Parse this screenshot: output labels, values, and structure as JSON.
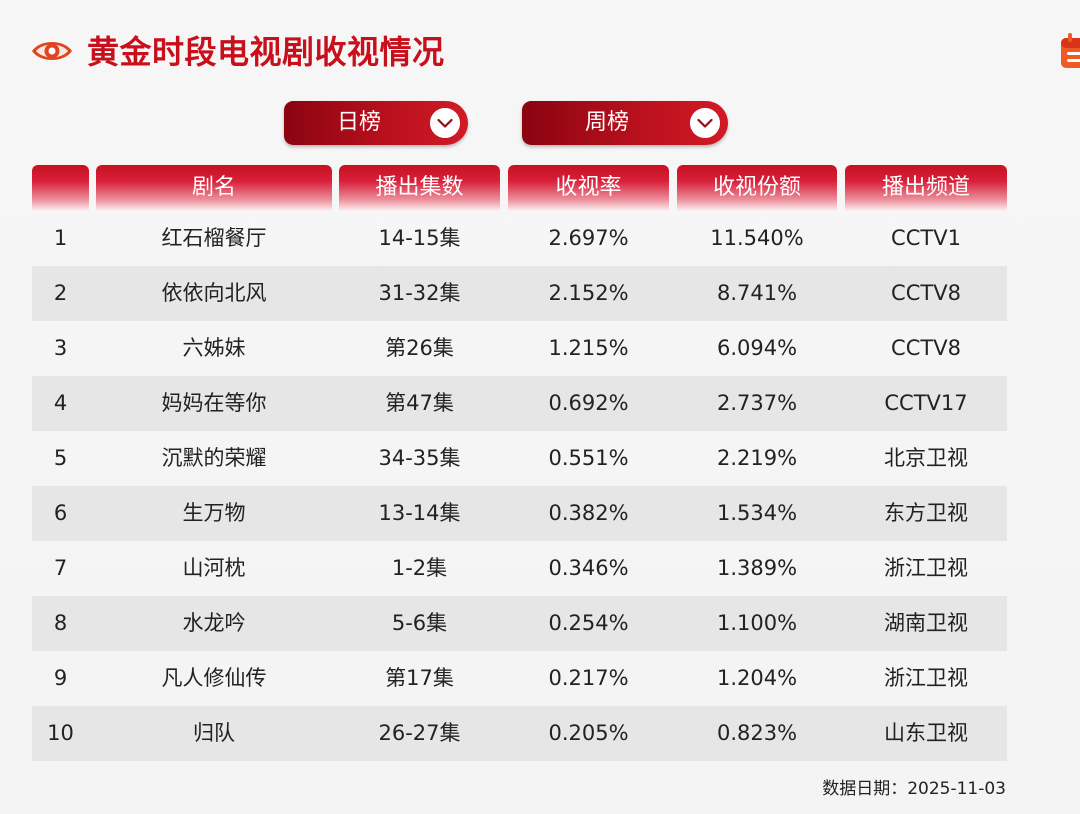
{
  "header": {
    "title": "黄金时段电视剧收视情况",
    "left_icon": "eye-icon",
    "right_icon": "calendar-icon"
  },
  "filters": {
    "day": {
      "label": "日榜",
      "icon": "chevron-down-icon"
    },
    "week": {
      "label": "周榜",
      "icon": "chevron-down-icon"
    }
  },
  "table": {
    "columns": [
      "",
      "剧名",
      "播出集数",
      "收视率",
      "收视份额",
      "播出频道"
    ],
    "rows": [
      {
        "rank": "1",
        "name": "红石榴餐厅",
        "episodes": "14-15集",
        "rating": "2.697%",
        "share": "11.540%",
        "channel": "CCTV1"
      },
      {
        "rank": "2",
        "name": "依依向北风",
        "episodes": "31-32集",
        "rating": "2.152%",
        "share": "8.741%",
        "channel": "CCTV8"
      },
      {
        "rank": "3",
        "name": "六姊妹",
        "episodes": "第26集",
        "rating": "1.215%",
        "share": "6.094%",
        "channel": "CCTV8"
      },
      {
        "rank": "4",
        "name": "妈妈在等你",
        "episodes": "第47集",
        "rating": "0.692%",
        "share": "2.737%",
        "channel": "CCTV17"
      },
      {
        "rank": "5",
        "name": "沉默的荣耀",
        "episodes": "34-35集",
        "rating": "0.551%",
        "share": "2.219%",
        "channel": "北京卫视"
      },
      {
        "rank": "6",
        "name": "生万物",
        "episodes": "13-14集",
        "rating": "0.382%",
        "share": "1.534%",
        "channel": "东方卫视"
      },
      {
        "rank": "7",
        "name": "山河枕",
        "episodes": "1-2集",
        "rating": "0.346%",
        "share": "1.389%",
        "channel": "浙江卫视"
      },
      {
        "rank": "8",
        "name": "水龙吟",
        "episodes": "5-6集",
        "rating": "0.254%",
        "share": "1.100%",
        "channel": "湖南卫视"
      },
      {
        "rank": "9",
        "name": "凡人修仙传",
        "episodes": "第17集",
        "rating": "0.217%",
        "share": "1.204%",
        "channel": "浙江卫视"
      },
      {
        "rank": "10",
        "name": "归队",
        "episodes": "26-27集",
        "rating": "0.205%",
        "share": "0.823%",
        "channel": "山东卫视"
      }
    ]
  },
  "footer": {
    "date_text": "数据日期：2025-11-03"
  },
  "colors": {
    "brand_red": "#c8101d",
    "header_gradient_dark": "#8a0410",
    "zebra_row": "#e6e6e6",
    "background": "#f5f5f5"
  }
}
